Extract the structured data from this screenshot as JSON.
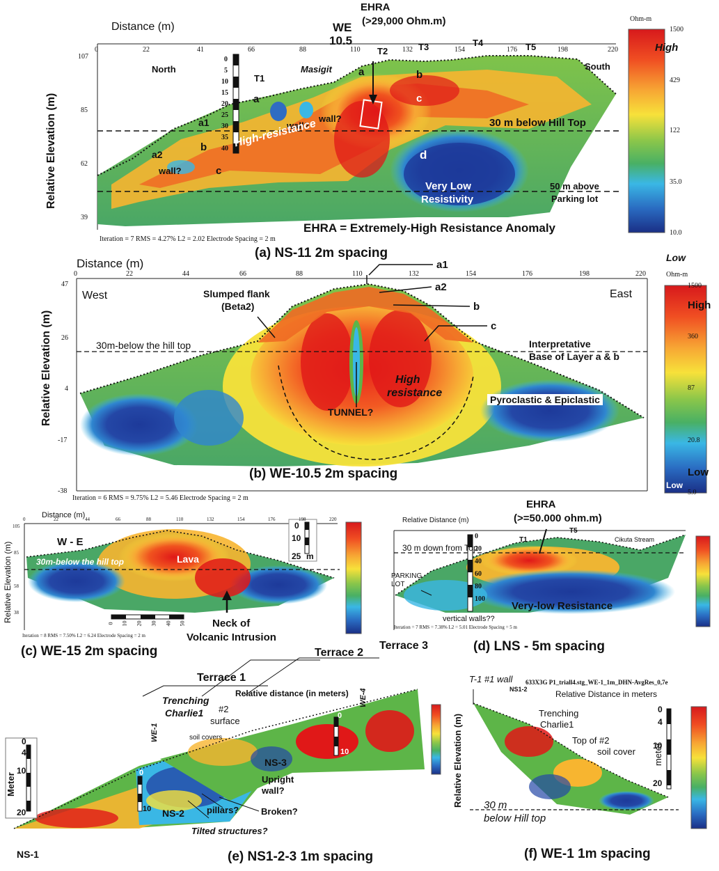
{
  "colors": {
    "high": "#d7191c",
    "orange": "#f38b2a",
    "yellow": "#f7e13a",
    "green": "#5db548",
    "cyan": "#3ab7e5",
    "blue": "#2447a6",
    "darkblue": "#1a2f86"
  },
  "panelA": {
    "x_title": "Distance (m)",
    "x_ticks": [
      "0",
      "22",
      "41",
      "66",
      "88",
      "110",
      "132",
      "154",
      "176",
      "198",
      "220"
    ],
    "y_title": "Relative  Elevation (m)",
    "y_ticks": [
      "107",
      "85",
      "62",
      "39"
    ],
    "labels": {
      "north": "North",
      "south": "South",
      "masigit": "Masigit",
      "we": "WE",
      "we_num": "10.5",
      "ehra": "EHRA",
      "ehra_val": "(>29,000 Ohm.m)",
      "t1": "T1",
      "t2": "T2",
      "t3": "T3",
      "t4": "T4",
      "t5": "T5",
      "a": "a",
      "b": "b",
      "c": "c",
      "d": "d",
      "a1": "a1",
      "a2": "a2",
      "wall1": "wall?",
      "wall2": "wall?",
      "wall3": "wall?",
      "high_res": "High-resistance",
      "below": "30 m below Hill Top",
      "vlow1": "Very Low",
      "vlow2": "Resistivity",
      "above1": "50 m above",
      "above2": "Parking lot",
      "ehra_def": "EHRA = Extremely-High Resistance Anomaly",
      "depth_scale": [
        "0",
        "5",
        "10",
        "15",
        "20",
        "25",
        "30",
        "35",
        "40"
      ]
    },
    "footer": "Iteration = 7    RMS = 4.27%    L2 = 2.02      Electrode Spacing = 2 m",
    "caption": "(a) NS-11 2m spacing"
  },
  "colorbarA": {
    "unit": "Ohm-m",
    "title": "High",
    "ticks": [
      "1500",
      "429",
      "122",
      "35.0",
      "10.0"
    ]
  },
  "panelB": {
    "x_title": "Distance (m)",
    "x_ticks": [
      "0",
      "22",
      "44",
      "66",
      "88",
      "110",
      "132",
      "154",
      "176",
      "198",
      "220"
    ],
    "y_title": "Relative Elevation (m)",
    "y_ticks": [
      "47",
      "26",
      "4",
      "-17",
      "-38"
    ],
    "labels": {
      "west": "West",
      "east": "East",
      "slumped1": "Slumped flank",
      "slumped2": "(Beta2)",
      "a1": "a1",
      "a2": "a2",
      "b": "b",
      "c": "c",
      "below": "30m-below the hill top",
      "interp1": "Interpretative",
      "interp2": "Base of Layer a & b",
      "high1": "High",
      "high2": "resistance",
      "tunnel": "TUNNEL?",
      "pyro": "Pyroclastic & Epiclastic"
    },
    "footer": "Iteration = 6    RMS = 9.75%    L2 = 5.46    Electrode Spacing = 2 m",
    "caption": "(b) WE-10.5 2m spacing"
  },
  "colorbarB": {
    "title": "Low",
    "unit": "Ohm-m",
    "ticks": [
      "1500",
      "360",
      "87",
      "20.8",
      "5.0"
    ],
    "high": "High",
    "low": "Low",
    "low_small": "Low"
  },
  "panelC": {
    "x_title": "Distance (m)",
    "x_ticks": [
      "0",
      "22",
      "44",
      "66",
      "88",
      "110",
      "132",
      "154",
      "176",
      "198",
      "220"
    ],
    "y_title": "Relative Elevation (m)",
    "y_ticks": [
      "105",
      "85",
      "58",
      "38"
    ],
    "labels": {
      "we": "W - E",
      "below": "30m-below the hill top",
      "lava": "Lava",
      "neck1": "Neck of",
      "neck2": "Volcanic Intrusion",
      "scale_m": "m",
      "scale": [
        "0",
        "10",
        "25"
      ],
      "hscale": [
        "0",
        "10",
        "20",
        "30",
        "40",
        "50"
      ]
    },
    "footer": "Iteration = 8    RMS = 7.50%   L2 = 6.24     Electrode Spacing = 2 m",
    "caption": "(c) WE-15  2m spacing"
  },
  "panelD": {
    "x_title": "Relative Distance (m)",
    "labels": {
      "ehra": "EHRA",
      "ehra_val": "(>=50.000 ohm.m)",
      "top": "30 m down from Top",
      "t1": "T1",
      "t5": "T5",
      "stream": "Cikuta Stream",
      "parking1": "PARKING",
      "parking2": "LOT",
      "walls": "vertical walls??",
      "vlow": "Very-low Resistance",
      "depth": [
        "0",
        "20",
        "40",
        "60",
        "80",
        "100"
      ]
    },
    "footer": "Iteration = 7    RMS = 7.38%    L2 = 5.01    Electrode Spacing = 5 m",
    "caption": "(d) LNS - 5m spacing"
  },
  "panelE": {
    "labels": {
      "terrace1": "Terrace 1",
      "terrace2": "Terrace 2",
      "terrace3": "Terrace 3",
      "rel": "Relative distance (in meters)",
      "trench1": "Trenching",
      "trench2": "Charlie1",
      "surf1": "#2",
      "surf2": "surface",
      "soil": "soil covers",
      "we1": "WE-1",
      "we4": "WE-4",
      "ns1": "NS-1",
      "ns2": "NS-2",
      "ns3": "NS-3",
      "upright1": "Upright",
      "upright2": "wall?",
      "pillars": "pillars?",
      "broken": "Broken?",
      "tilted": "Tilted structures?",
      "meter": "Meter",
      "scale": [
        "0",
        "4",
        "10",
        "20"
      ],
      "s0": "0",
      "s10": "10"
    },
    "caption": "(e) NS1-2-3  1m spacing"
  },
  "panelF": {
    "labels": {
      "wall": "T-1 #1 wall",
      "ns12": "NS1-2",
      "file": "633X3G P1_triall4.stg_WE-1_1m_DHN-AvgRes_0,7e",
      "rel": "Relative Distance in meters",
      "trench1": "Trenching",
      "trench2": "Charlie1",
      "top1": "Top of #2",
      "top2": "soil cover",
      "y_title": "Relative Elevation (m)",
      "m30": "30 m",
      "below": "below Hill top",
      "meter": "meter",
      "scale": [
        "0",
        "4",
        "10",
        "20"
      ]
    },
    "caption": "(f) WE-1 1m spacing"
  }
}
